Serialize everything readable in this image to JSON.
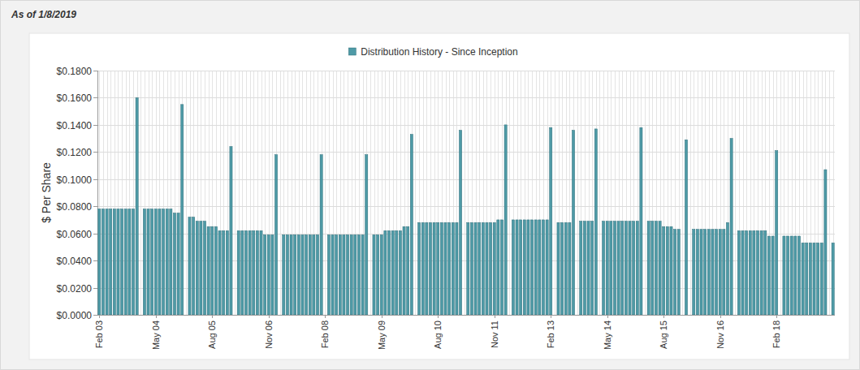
{
  "chart_data": {
    "type": "bar",
    "title": "As of 1/8/2019",
    "ylabel": "$ Per Share",
    "legend": "top",
    "grid": true,
    "categories": [
      "Feb 03",
      null,
      null,
      null,
      null,
      null,
      null,
      null,
      null,
      null,
      null,
      null,
      null,
      null,
      null,
      "May 04",
      null,
      null,
      null,
      null,
      null,
      null,
      null,
      null,
      null,
      null,
      null,
      null,
      null,
      null,
      "Aug 05",
      null,
      null,
      null,
      null,
      null,
      null,
      null,
      null,
      null,
      null,
      null,
      null,
      null,
      null,
      "Nov 06",
      null,
      null,
      null,
      null,
      null,
      null,
      null,
      null,
      null,
      null,
      null,
      null,
      null,
      null,
      "Feb 08",
      null,
      null,
      null,
      null,
      null,
      null,
      null,
      null,
      null,
      null,
      null,
      null,
      null,
      null,
      "May 09",
      null,
      null,
      null,
      null,
      null,
      null,
      null,
      null,
      null,
      null,
      null,
      null,
      null,
      null,
      "Aug 10",
      null,
      null,
      null,
      null,
      null,
      null,
      null,
      null,
      null,
      null,
      null,
      null,
      null,
      null,
      "Nov 11",
      null,
      null,
      null,
      null,
      null,
      null,
      null,
      null,
      null,
      null,
      null,
      null,
      null,
      null,
      "Feb 13",
      null,
      null,
      null,
      null,
      null,
      null,
      null,
      null,
      null,
      null,
      null,
      null,
      null,
      null,
      "May 14",
      null,
      null,
      null,
      null,
      null,
      null,
      null,
      null,
      null,
      null,
      null,
      null,
      null,
      null,
      "Aug 15",
      null,
      null,
      null,
      null,
      null,
      null,
      null,
      null,
      null,
      null,
      null,
      null,
      null,
      null,
      "Nov 16",
      null,
      null,
      null,
      null,
      null,
      null,
      null,
      null,
      null,
      null,
      null,
      null,
      null,
      null,
      "Feb 18",
      null,
      null,
      null,
      null,
      null,
      null,
      null,
      null,
      null,
      null,
      null,
      null,
      null,
      null,
      null
    ],
    "series": [
      {
        "name": "Distribution History - Since Inception",
        "color": "#4e9aa6",
        "values": [
          0.078,
          0.078,
          0.078,
          0.078,
          0.078,
          0.078,
          0.078,
          0.078,
          0.078,
          0.078,
          0.16,
          null,
          0.078,
          0.078,
          0.078,
          0.078,
          0.078,
          0.078,
          0.078,
          0.078,
          0.075,
          0.075,
          0.155,
          null,
          0.072,
          0.072,
          0.069,
          0.069,
          0.069,
          0.065,
          0.065,
          0.065,
          0.062,
          0.062,
          0.062,
          0.124,
          null,
          0.062,
          0.062,
          0.062,
          0.062,
          0.062,
          0.062,
          0.062,
          0.059,
          0.059,
          0.059,
          0.118,
          null,
          0.059,
          0.059,
          0.059,
          0.059,
          0.059,
          0.059,
          0.059,
          0.059,
          0.059,
          0.059,
          0.118,
          null,
          0.059,
          0.059,
          0.059,
          0.059,
          0.059,
          0.059,
          0.059,
          0.059,
          0.059,
          0.059,
          0.118,
          null,
          0.059,
          0.059,
          0.059,
          0.062,
          0.062,
          0.062,
          0.062,
          0.062,
          0.065,
          0.065,
          0.133,
          null,
          0.068,
          0.068,
          0.068,
          0.068,
          0.068,
          0.068,
          0.068,
          0.068,
          0.068,
          0.068,
          0.068,
          0.136,
          null,
          0.068,
          0.068,
          0.068,
          0.068,
          0.068,
          0.068,
          0.068,
          0.068,
          0.07,
          0.07,
          0.14,
          null,
          0.07,
          0.07,
          0.07,
          0.07,
          0.07,
          0.07,
          0.07,
          0.07,
          0.07,
          0.07,
          0.138,
          null,
          0.068,
          0.068,
          0.068,
          0.068,
          0.136,
          null,
          0.069,
          0.069,
          0.069,
          0.069,
          0.137,
          null,
          0.069,
          0.069,
          0.069,
          0.069,
          0.069,
          0.069,
          0.069,
          0.069,
          0.069,
          0.069,
          0.138,
          null,
          0.069,
          0.069,
          0.069,
          0.069,
          0.065,
          0.065,
          0.065,
          0.063,
          0.063,
          null,
          0.129,
          null,
          0.063,
          0.063,
          0.063,
          0.063,
          0.063,
          0.063,
          0.063,
          0.063,
          0.063,
          0.068,
          0.13,
          null,
          0.062,
          0.062,
          0.062,
          0.062,
          0.062,
          0.062,
          0.062,
          0.062,
          0.058,
          0.058,
          0.121,
          null,
          0.058,
          0.058,
          0.058,
          0.058,
          0.058,
          0.053,
          0.053,
          0.053,
          0.053,
          0.053,
          0.053,
          0.107,
          null,
          0.053
        ]
      }
    ],
    "ylim": [
      0,
      0.18
    ],
    "yticks": [
      {
        "value": 0,
        "label": "$0.0000"
      },
      {
        "value": 0.02,
        "label": "$0.0200"
      },
      {
        "value": 0.04,
        "label": "$0.0400"
      },
      {
        "value": 0.06,
        "label": "$0.0600"
      },
      {
        "value": 0.08,
        "label": "$0.0800"
      },
      {
        "value": 0.1,
        "label": "$0.1000"
      },
      {
        "value": 0.12,
        "label": "$0.1200"
      },
      {
        "value": 0.14,
        "label": "$0.1400"
      },
      {
        "value": 0.16,
        "label": "$0.1600"
      },
      {
        "value": 0.18,
        "label": "$0.1800"
      }
    ]
  }
}
